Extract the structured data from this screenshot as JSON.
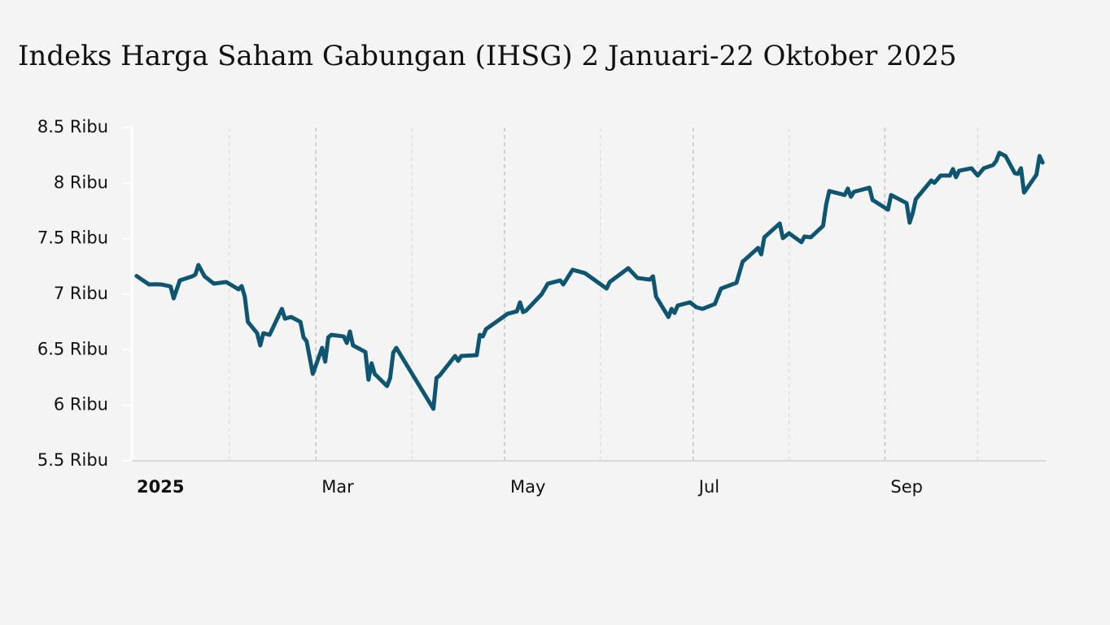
{
  "chart_data": {
    "type": "line",
    "title": "Indeks Harga Saham Gabungan (IHSG) 2 Januari-22 Oktober 2025",
    "color": "#0e5572",
    "x": [
      "2025-01-02",
      "2025-01-06",
      "2025-01-08",
      "2025-01-10",
      "2025-01-13",
      "2025-01-14",
      "2025-01-16",
      "2025-01-20",
      "2025-01-21",
      "2025-01-22",
      "2025-01-24",
      "2025-01-27",
      "2025-01-31",
      "2025-02-04",
      "2025-02-05",
      "2025-02-06",
      "2025-02-07",
      "2025-02-10",
      "2025-02-11",
      "2025-02-12",
      "2025-02-14",
      "2025-02-18",
      "2025-02-19",
      "2025-02-21",
      "2025-02-24",
      "2025-02-25",
      "2025-02-26",
      "2025-02-28",
      "2025-03-03",
      "2025-03-04",
      "2025-03-05",
      "2025-03-06",
      "2025-03-10",
      "2025-03-11",
      "2025-03-12",
      "2025-03-13",
      "2025-03-17",
      "2025-03-18",
      "2025-03-19",
      "2025-03-20",
      "2025-03-24",
      "2025-03-25",
      "2025-03-26",
      "2025-03-27",
      "2025-04-08",
      "2025-04-09",
      "2025-04-10",
      "2025-04-15",
      "2025-04-16",
      "2025-04-17",
      "2025-04-22",
      "2025-04-23",
      "2025-04-24",
      "2025-04-25",
      "2025-04-28",
      "2025-05-02",
      "2025-05-05",
      "2025-05-06",
      "2025-05-07",
      "2025-05-08",
      "2025-05-13",
      "2025-05-15",
      "2025-05-19",
      "2025-05-20",
      "2025-05-22",
      "2025-05-23",
      "2025-05-27",
      "2025-06-03",
      "2025-06-04",
      "2025-06-10",
      "2025-06-13",
      "2025-06-17",
      "2025-06-18",
      "2025-06-19",
      "2025-06-23",
      "2025-06-24",
      "2025-06-25",
      "2025-06-26",
      "2025-06-30",
      "2025-07-02",
      "2025-07-04",
      "2025-07-08",
      "2025-07-10",
      "2025-07-15",
      "2025-07-17",
      "2025-07-22",
      "2025-07-23",
      "2025-07-24",
      "2025-07-29",
      "2025-07-30",
      "2025-08-01",
      "2025-08-05",
      "2025-08-06",
      "2025-08-08",
      "2025-08-12",
      "2025-08-13",
      "2025-08-14",
      "2025-08-19",
      "2025-08-20",
      "2025-08-21",
      "2025-08-22",
      "2025-08-27",
      "2025-08-28",
      "2025-09-02",
      "2025-09-03",
      "2025-09-08",
      "2025-09-09",
      "2025-09-10",
      "2025-09-11",
      "2025-09-16",
      "2025-09-17",
      "2025-09-19",
      "2025-09-22",
      "2025-09-23",
      "2025-09-24",
      "2025-09-25",
      "2025-09-29",
      "2025-10-01",
      "2025-10-03",
      "2025-10-06",
      "2025-10-07",
      "2025-10-08",
      "2025-10-10",
      "2025-10-13",
      "2025-10-14",
      "2025-10-15",
      "2025-10-16",
      "2025-10-20",
      "2025-10-21",
      "2025-10-22"
    ],
    "values": [
      7164,
      7088,
      7090,
      7088,
      7070,
      6963,
      7124,
      7161,
      7176,
      7263,
      7161,
      7095,
      7110,
      7044,
      7073,
      6978,
      6751,
      6649,
      6539,
      6649,
      6634,
      6868,
      6780,
      6795,
      6751,
      6612,
      6576,
      6283,
      6517,
      6393,
      6612,
      6634,
      6620,
      6561,
      6664,
      6539,
      6480,
      6231,
      6378,
      6283,
      6173,
      6246,
      6473,
      6517,
      5968,
      6246,
      6268,
      6444,
      6400,
      6444,
      6451,
      6634,
      6620,
      6686,
      6744,
      6824,
      6846,
      6927,
      6839,
      6853,
      7000,
      7095,
      7124,
      7088,
      7176,
      7220,
      7190,
      7051,
      7110,
      7234,
      7146,
      7132,
      7161,
      6978,
      6795,
      6868,
      6832,
      6898,
      6927,
      6883,
      6868,
      6912,
      7051,
      7103,
      7293,
      7417,
      7359,
      7512,
      7637,
      7505,
      7549,
      7468,
      7520,
      7512,
      7615,
      7805,
      7929,
      7893,
      7951,
      7878,
      7922,
      7959,
      7849,
      7761,
      7893,
      7820,
      7644,
      7732,
      7856,
      8024,
      8002,
      8068,
      8068,
      8127,
      8054,
      8112,
      8134,
      8068,
      8134,
      8163,
      8200,
      8273,
      8244,
      8090,
      8083,
      8134,
      7915,
      8076,
      8244,
      8185
    ],
    "xlim": [
      "2025-01-01",
      "2025-10-23"
    ],
    "xticks": [
      {
        "value": "2025-01-01",
        "label": "2025"
      },
      {
        "value": "2025-02-01",
        "label": null
      },
      {
        "value": "2025-03-01",
        "label": "Mar"
      },
      {
        "value": "2025-04-01",
        "label": null
      },
      {
        "value": "2025-05-01",
        "label": "May"
      },
      {
        "value": "2025-06-01",
        "label": null
      },
      {
        "value": "2025-07-01",
        "label": "Jul"
      },
      {
        "value": "2025-08-01",
        "label": null
      },
      {
        "value": "2025-09-01",
        "label": "Sep"
      },
      {
        "value": "2025-10-01",
        "label": null
      }
    ],
    "ylim": [
      5500,
      8500
    ],
    "yticks": [
      {
        "value": 5500,
        "label": "5.5 Ribu"
      },
      {
        "value": 6000,
        "label": "6 Ribu"
      },
      {
        "value": 6500,
        "label": "6.5 Ribu"
      },
      {
        "value": 7000,
        "label": "7 Ribu"
      },
      {
        "value": 7500,
        "label": "7.5 Ribu"
      },
      {
        "value": 8000,
        "label": "8 Ribu"
      },
      {
        "value": 8500,
        "label": "8.5 Ribu"
      }
    ],
    "grid": true
  }
}
